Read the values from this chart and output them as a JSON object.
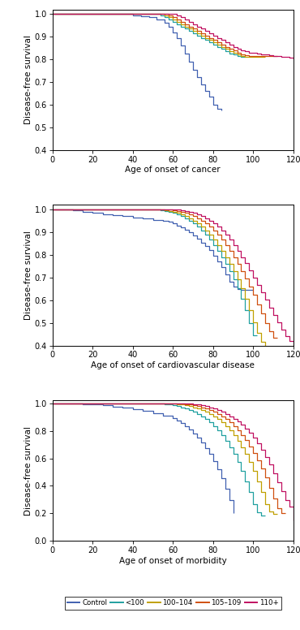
{
  "colors": {
    "control": "#4060b0",
    "lt100": "#20a0a0",
    "c100_104": "#c0a000",
    "c105_109": "#d05010",
    "c110plus": "#c01060"
  },
  "legend_labels": [
    "Control",
    "<100",
    "100–104",
    "105–109",
    "110+"
  ],
  "color_order": [
    "control",
    "lt100",
    "c100_104",
    "c105_109",
    "c110plus"
  ],
  "xlim": [
    0,
    120
  ],
  "xticks": [
    0,
    20,
    40,
    60,
    80,
    100,
    120
  ],
  "panel_xlabels": [
    "Age of onset of cancer",
    "Age of onset of cardiovascular disease",
    "Age of onset of morbidity"
  ],
  "ylabel": "Disease-free survival",
  "p1_ylim": [
    0.4,
    1.02
  ],
  "p1_yticks": [
    0.4,
    0.5,
    0.6,
    0.7,
    0.8,
    0.9,
    1.0
  ],
  "p2_ylim": [
    0.4,
    1.02
  ],
  "p2_yticks": [
    0.4,
    0.5,
    0.6,
    0.7,
    0.8,
    0.9,
    1.0
  ],
  "p3_ylim": [
    0.0,
    1.02
  ],
  "p3_yticks": [
    0.0,
    0.2,
    0.4,
    0.6,
    0.8,
    1.0
  ],
  "panel1": {
    "control": {
      "x": [
        0,
        38,
        40,
        44,
        48,
        52,
        56,
        58,
        60,
        62,
        64,
        66,
        68,
        70,
        72,
        74,
        76,
        78,
        80,
        82,
        84
      ],
      "y": [
        1.0,
        1.0,
        0.995,
        0.99,
        0.985,
        0.975,
        0.96,
        0.945,
        0.92,
        0.895,
        0.86,
        0.825,
        0.79,
        0.755,
        0.72,
        0.69,
        0.66,
        0.635,
        0.6,
        0.58,
        0.575
      ]
    },
    "lt100": {
      "x": [
        0,
        52,
        54,
        56,
        58,
        60,
        62,
        64,
        66,
        68,
        70,
        72,
        74,
        76,
        78,
        80,
        82,
        84,
        86,
        88,
        90,
        92,
        94,
        96
      ],
      "y": [
        1.0,
        1.0,
        0.995,
        0.985,
        0.975,
        0.965,
        0.955,
        0.945,
        0.935,
        0.925,
        0.915,
        0.905,
        0.895,
        0.885,
        0.875,
        0.865,
        0.855,
        0.845,
        0.835,
        0.825,
        0.82,
        0.815,
        0.81,
        0.81
      ]
    },
    "c100_104": {
      "x": [
        0,
        54,
        56,
        58,
        60,
        62,
        64,
        66,
        68,
        70,
        72,
        74,
        76,
        78,
        80,
        82,
        84,
        86,
        88,
        90,
        92,
        94,
        96,
        98,
        100,
        102,
        104,
        106
      ],
      "y": [
        1.0,
        1.0,
        0.995,
        0.985,
        0.975,
        0.965,
        0.955,
        0.945,
        0.935,
        0.925,
        0.915,
        0.905,
        0.895,
        0.885,
        0.875,
        0.865,
        0.855,
        0.845,
        0.835,
        0.828,
        0.82,
        0.815,
        0.812,
        0.812,
        0.812,
        0.812,
        0.81,
        0.81
      ]
    },
    "c105_109": {
      "x": [
        0,
        56,
        58,
        60,
        62,
        64,
        66,
        68,
        70,
        72,
        74,
        76,
        78,
        80,
        82,
        84,
        86,
        88,
        90,
        92,
        94,
        96,
        98,
        100,
        102,
        104,
        106,
        108,
        110,
        112
      ],
      "y": [
        1.0,
        1.0,
        0.995,
        0.985,
        0.975,
        0.965,
        0.955,
        0.945,
        0.935,
        0.925,
        0.915,
        0.905,
        0.895,
        0.885,
        0.875,
        0.865,
        0.855,
        0.845,
        0.838,
        0.83,
        0.823,
        0.817,
        0.813,
        0.813,
        0.813,
        0.813,
        0.813,
        0.813,
        0.813,
        0.813
      ]
    },
    "c110plus": {
      "x": [
        0,
        60,
        62,
        64,
        66,
        68,
        70,
        72,
        74,
        76,
        78,
        80,
        82,
        84,
        86,
        88,
        90,
        92,
        94,
        96,
        98,
        100,
        102,
        104,
        106,
        108,
        110,
        112,
        114,
        116,
        118,
        120
      ],
      "y": [
        1.0,
        1.0,
        0.995,
        0.985,
        0.975,
        0.965,
        0.955,
        0.945,
        0.935,
        0.925,
        0.915,
        0.905,
        0.895,
        0.885,
        0.875,
        0.865,
        0.855,
        0.848,
        0.841,
        0.835,
        0.83,
        0.828,
        0.825,
        0.822,
        0.82,
        0.818,
        0.816,
        0.814,
        0.812,
        0.81,
        0.806,
        0.8
      ]
    }
  },
  "panel2": {
    "control": {
      "x": [
        0,
        10,
        15,
        20,
        25,
        30,
        35,
        40,
        45,
        50,
        55,
        58,
        60,
        62,
        64,
        66,
        68,
        70,
        72,
        74,
        76,
        78,
        80,
        82,
        84,
        86,
        88,
        90,
        92,
        94,
        96,
        98,
        100
      ],
      "y": [
        1.0,
        0.995,
        0.99,
        0.985,
        0.98,
        0.975,
        0.97,
        0.965,
        0.96,
        0.955,
        0.95,
        0.945,
        0.94,
        0.93,
        0.92,
        0.91,
        0.9,
        0.885,
        0.87,
        0.855,
        0.84,
        0.82,
        0.795,
        0.77,
        0.745,
        0.715,
        0.68,
        0.66,
        0.648,
        0.645,
        0.645,
        0.645,
        0.645
      ]
    },
    "lt100": {
      "x": [
        0,
        52,
        54,
        56,
        58,
        60,
        62,
        64,
        66,
        68,
        70,
        72,
        74,
        76,
        78,
        80,
        82,
        84,
        86,
        88,
        90,
        92,
        94,
        96,
        98,
        100,
        102
      ],
      "y": [
        1.0,
        1.0,
        0.997,
        0.994,
        0.99,
        0.985,
        0.978,
        0.97,
        0.96,
        0.95,
        0.938,
        0.924,
        0.908,
        0.89,
        0.868,
        0.844,
        0.818,
        0.79,
        0.76,
        0.728,
        0.692,
        0.652,
        0.606,
        0.555,
        0.498,
        0.445,
        0.445
      ]
    },
    "c100_104": {
      "x": [
        0,
        54,
        56,
        58,
        60,
        62,
        64,
        66,
        68,
        70,
        72,
        74,
        76,
        78,
        80,
        82,
        84,
        86,
        88,
        90,
        92,
        94,
        96,
        98,
        100,
        102,
        104,
        106,
        108
      ],
      "y": [
        1.0,
        1.0,
        0.997,
        0.994,
        0.99,
        0.985,
        0.978,
        0.97,
        0.96,
        0.95,
        0.938,
        0.924,
        0.908,
        0.89,
        0.868,
        0.844,
        0.818,
        0.79,
        0.76,
        0.728,
        0.692,
        0.652,
        0.606,
        0.555,
        0.503,
        0.455,
        0.415,
        0.385,
        0.385
      ]
    },
    "c105_109": {
      "x": [
        0,
        58,
        60,
        62,
        64,
        66,
        68,
        70,
        72,
        74,
        76,
        78,
        80,
        82,
        84,
        86,
        88,
        90,
        92,
        94,
        96,
        98,
        100,
        102,
        104,
        106,
        108,
        110,
        112
      ],
      "y": [
        1.0,
        1.0,
        0.997,
        0.994,
        0.99,
        0.985,
        0.978,
        0.97,
        0.96,
        0.95,
        0.938,
        0.924,
        0.908,
        0.89,
        0.868,
        0.844,
        0.818,
        0.79,
        0.76,
        0.728,
        0.695,
        0.66,
        0.623,
        0.582,
        0.54,
        0.498,
        0.462,
        0.435,
        0.435
      ]
    },
    "c110plus": {
      "x": [
        0,
        62,
        64,
        66,
        68,
        70,
        72,
        74,
        76,
        78,
        80,
        82,
        84,
        86,
        88,
        90,
        92,
        94,
        96,
        98,
        100,
        102,
        104,
        106,
        108,
        110,
        112,
        114,
        116,
        118,
        120
      ],
      "y": [
        1.0,
        1.0,
        0.997,
        0.994,
        0.99,
        0.985,
        0.978,
        0.97,
        0.96,
        0.95,
        0.938,
        0.924,
        0.908,
        0.89,
        0.868,
        0.844,
        0.818,
        0.79,
        0.762,
        0.732,
        0.7,
        0.667,
        0.634,
        0.601,
        0.568,
        0.535,
        0.502,
        0.469,
        0.44,
        0.42,
        0.4
      ]
    }
  },
  "panel3": {
    "control": {
      "x": [
        0,
        10,
        15,
        20,
        25,
        30,
        35,
        40,
        45,
        50,
        55,
        60,
        62,
        64,
        66,
        68,
        70,
        72,
        74,
        76,
        78,
        80,
        82,
        84,
        86,
        88,
        90
      ],
      "y": [
        1.0,
        0.997,
        0.994,
        0.99,
        0.984,
        0.977,
        0.968,
        0.958,
        0.945,
        0.93,
        0.912,
        0.89,
        0.875,
        0.856,
        0.835,
        0.81,
        0.782,
        0.75,
        0.714,
        0.674,
        0.63,
        0.58,
        0.522,
        0.456,
        0.382,
        0.295,
        0.2
      ]
    },
    "lt100": {
      "x": [
        0,
        52,
        54,
        56,
        58,
        60,
        62,
        64,
        66,
        68,
        70,
        72,
        74,
        76,
        78,
        80,
        82,
        84,
        86,
        88,
        90,
        92,
        94,
        96,
        98,
        100,
        102,
        104,
        106
      ],
      "y": [
        1.0,
        1.0,
        0.997,
        0.994,
        0.99,
        0.985,
        0.978,
        0.97,
        0.96,
        0.95,
        0.937,
        0.922,
        0.905,
        0.885,
        0.862,
        0.835,
        0.804,
        0.768,
        0.727,
        0.681,
        0.63,
        0.572,
        0.507,
        0.435,
        0.355,
        0.27,
        0.21,
        0.185,
        0.185
      ]
    },
    "c100_104": {
      "x": [
        0,
        58,
        60,
        62,
        64,
        66,
        68,
        70,
        72,
        74,
        76,
        78,
        80,
        82,
        84,
        86,
        88,
        90,
        92,
        94,
        96,
        98,
        100,
        102,
        104,
        106,
        108,
        110,
        112
      ],
      "y": [
        1.0,
        1.0,
        0.997,
        0.994,
        0.99,
        0.985,
        0.978,
        0.97,
        0.96,
        0.95,
        0.937,
        0.922,
        0.905,
        0.885,
        0.862,
        0.835,
        0.804,
        0.768,
        0.727,
        0.681,
        0.63,
        0.572,
        0.507,
        0.435,
        0.355,
        0.27,
        0.215,
        0.195,
        0.195
      ]
    },
    "c105_109": {
      "x": [
        0,
        62,
        64,
        66,
        68,
        70,
        72,
        74,
        76,
        78,
        80,
        82,
        84,
        86,
        88,
        90,
        92,
        94,
        96,
        98,
        100,
        102,
        104,
        106,
        108,
        110,
        112,
        114,
        116
      ],
      "y": [
        1.0,
        1.0,
        0.997,
        0.994,
        0.99,
        0.985,
        0.978,
        0.97,
        0.96,
        0.95,
        0.937,
        0.922,
        0.905,
        0.885,
        0.862,
        0.835,
        0.804,
        0.768,
        0.73,
        0.688,
        0.641,
        0.588,
        0.528,
        0.462,
        0.388,
        0.307,
        0.235,
        0.205,
        0.205
      ]
    },
    "c110plus": {
      "x": [
        0,
        66,
        68,
        70,
        72,
        74,
        76,
        78,
        80,
        82,
        84,
        86,
        88,
        90,
        92,
        94,
        96,
        98,
        100,
        102,
        104,
        106,
        108,
        110,
        112,
        114,
        116,
        118,
        120
      ],
      "y": [
        1.0,
        1.0,
        0.997,
        0.994,
        0.99,
        0.985,
        0.978,
        0.97,
        0.96,
        0.95,
        0.937,
        0.922,
        0.905,
        0.888,
        0.868,
        0.845,
        0.818,
        0.786,
        0.75,
        0.709,
        0.663,
        0.612,
        0.555,
        0.494,
        0.428,
        0.36,
        0.295,
        0.248,
        0.15
      ]
    }
  }
}
